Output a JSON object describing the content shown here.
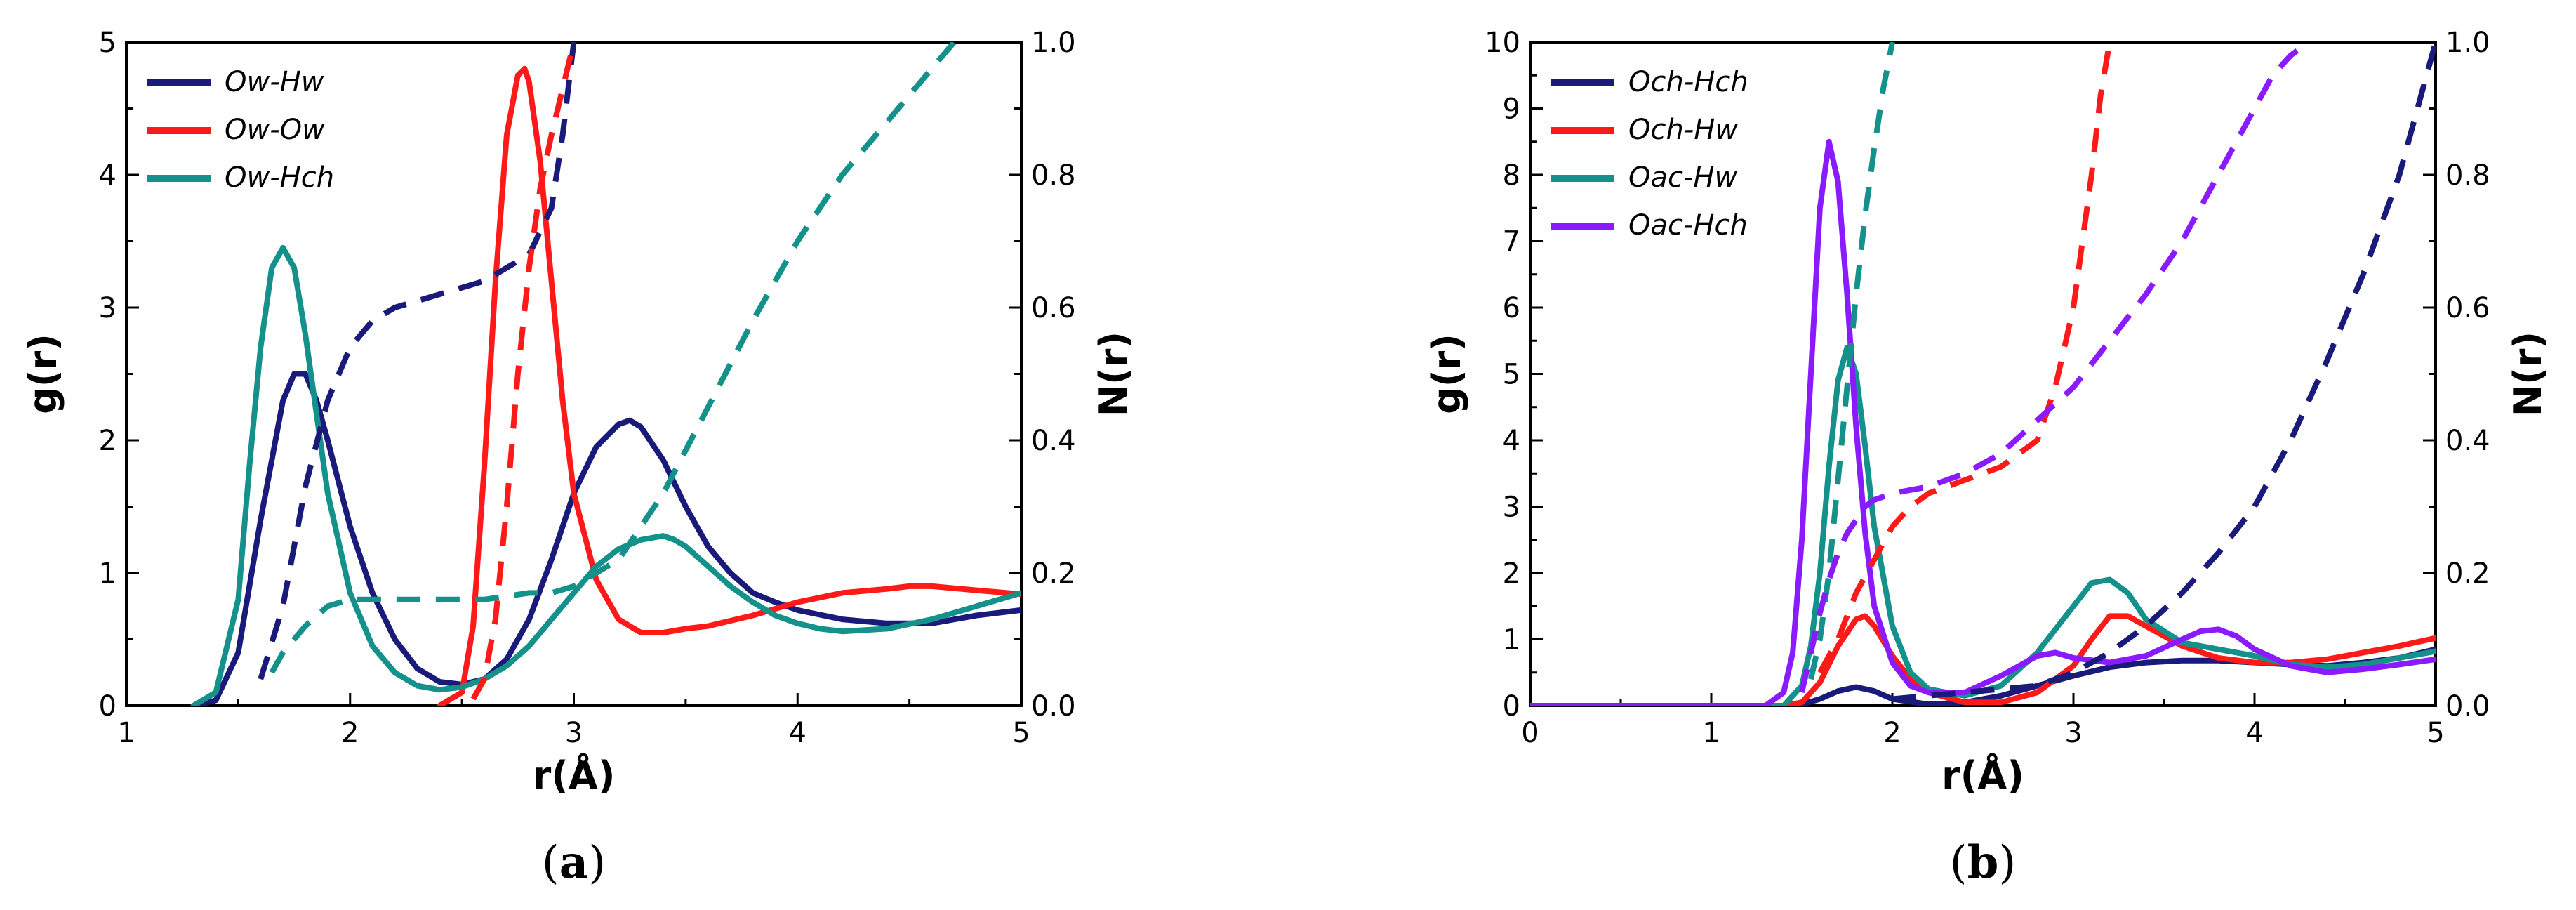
{
  "chart_data": [
    {
      "type": "line",
      "panel_label": "a",
      "xlabel": "r(Å)",
      "ylabel": "g(r)",
      "y2label": "N(r)",
      "xlim": [
        1,
        5
      ],
      "ylim": [
        0,
        5
      ],
      "y2lim": [
        0,
        1
      ],
      "xticks": [
        "1",
        "2",
        "3",
        "4",
        "5"
      ],
      "yticks": [
        "0",
        "1",
        "2",
        "3",
        "4",
        "5"
      ],
      "y2ticks": [
        "0.0",
        "0.2",
        "0.4",
        "0.6",
        "0.8",
        "1.0"
      ],
      "legend_position": "top-left",
      "series": [
        {
          "name": "Ow-Hw",
          "color": "#1a1a7a",
          "kind": "g",
          "x": [
            1.3,
            1.4,
            1.5,
            1.6,
            1.7,
            1.75,
            1.8,
            1.85,
            1.9,
            2.0,
            2.1,
            2.2,
            2.3,
            2.4,
            2.5,
            2.6,
            2.7,
            2.8,
            2.9,
            3.0,
            3.1,
            3.2,
            3.25,
            3.3,
            3.4,
            3.5,
            3.6,
            3.7,
            3.8,
            3.9,
            4.0,
            4.2,
            4.4,
            4.6,
            4.8,
            5.0
          ],
          "y": [
            0,
            0.04,
            0.4,
            1.4,
            2.3,
            2.5,
            2.5,
            2.3,
            2.0,
            1.35,
            0.85,
            0.5,
            0.28,
            0.18,
            0.16,
            0.2,
            0.35,
            0.65,
            1.1,
            1.6,
            1.95,
            2.12,
            2.15,
            2.1,
            1.85,
            1.5,
            1.2,
            1.0,
            0.85,
            0.78,
            0.72,
            0.65,
            0.62,
            0.62,
            0.68,
            0.72
          ]
        },
        {
          "name": "Ow-Ow",
          "color": "#ff1a1a",
          "kind": "g",
          "x": [
            2.4,
            2.5,
            2.55,
            2.6,
            2.65,
            2.7,
            2.75,
            2.78,
            2.8,
            2.85,
            2.9,
            2.95,
            3.0,
            3.1,
            3.2,
            3.3,
            3.4,
            3.5,
            3.6,
            3.8,
            4.0,
            4.2,
            4.4,
            4.5,
            4.6,
            4.8,
            5.0
          ],
          "y": [
            0,
            0.1,
            0.6,
            1.8,
            3.2,
            4.3,
            4.75,
            4.8,
            4.7,
            4.1,
            3.2,
            2.3,
            1.6,
            0.95,
            0.65,
            0.55,
            0.55,
            0.58,
            0.6,
            0.68,
            0.78,
            0.85,
            0.88,
            0.9,
            0.9,
            0.87,
            0.84
          ]
        },
        {
          "name": "Ow-Hch",
          "color": "#14918a",
          "kind": "g",
          "x": [
            1.3,
            1.4,
            1.5,
            1.55,
            1.6,
            1.65,
            1.7,
            1.75,
            1.8,
            1.85,
            1.9,
            2.0,
            2.1,
            2.2,
            2.3,
            2.4,
            2.5,
            2.6,
            2.7,
            2.8,
            2.9,
            3.0,
            3.1,
            3.2,
            3.3,
            3.4,
            3.45,
            3.5,
            3.6,
            3.7,
            3.8,
            3.9,
            4.0,
            4.1,
            4.2,
            4.4,
            4.6,
            4.8,
            5.0
          ],
          "y": [
            0,
            0.1,
            0.8,
            1.8,
            2.7,
            3.3,
            3.45,
            3.3,
            2.8,
            2.2,
            1.6,
            0.85,
            0.45,
            0.25,
            0.15,
            0.12,
            0.14,
            0.2,
            0.3,
            0.45,
            0.65,
            0.85,
            1.05,
            1.18,
            1.25,
            1.28,
            1.25,
            1.2,
            1.05,
            0.9,
            0.78,
            0.68,
            0.62,
            0.58,
            0.56,
            0.58,
            0.65,
            0.75,
            0.85
          ]
        },
        {
          "name": "Ow-Hw N(r)",
          "color": "#1a1a7a",
          "kind": "N",
          "legend": false,
          "x": [
            1.6,
            1.7,
            1.8,
            1.9,
            2.0,
            2.1,
            2.2,
            2.4,
            2.6,
            2.8,
            2.9,
            2.95,
            3.0
          ],
          "y": [
            0.04,
            0.15,
            0.33,
            0.46,
            0.54,
            0.58,
            0.6,
            0.62,
            0.64,
            0.68,
            0.75,
            0.86,
            1.0
          ]
        },
        {
          "name": "Ow-Ow N(r)",
          "color": "#ff1a1a",
          "kind": "N",
          "legend": false,
          "x": [
            2.55,
            2.6,
            2.65,
            2.7,
            2.75,
            2.8,
            2.85,
            2.9,
            2.95,
            3.0
          ],
          "y": [
            0.01,
            0.04,
            0.13,
            0.3,
            0.5,
            0.66,
            0.78,
            0.86,
            0.93,
            1.0
          ]
        },
        {
          "name": "Ow-Hch N(r)",
          "color": "#14918a",
          "kind": "N",
          "legend": false,
          "x": [
            1.65,
            1.7,
            1.8,
            1.9,
            2.0,
            2.1,
            2.2,
            2.4,
            2.6,
            2.8,
            2.9,
            3.0,
            3.2,
            3.4,
            3.6,
            3.8,
            4.0,
            4.2,
            4.4,
            4.6,
            4.7
          ],
          "y": [
            0.05,
            0.08,
            0.12,
            0.15,
            0.16,
            0.16,
            0.16,
            0.16,
            0.16,
            0.17,
            0.17,
            0.18,
            0.22,
            0.32,
            0.45,
            0.58,
            0.7,
            0.8,
            0.88,
            0.96,
            1.0
          ]
        }
      ]
    },
    {
      "type": "line",
      "panel_label": "b",
      "xlabel": "r(Å)",
      "ylabel": "g(r)",
      "y2label": "N(r)",
      "xlim": [
        0,
        5
      ],
      "ylim": [
        0,
        10
      ],
      "y2lim": [
        0,
        1
      ],
      "xticks": [
        "0",
        "1",
        "2",
        "3",
        "4",
        "5"
      ],
      "yticks": [
        "0",
        "1",
        "2",
        "3",
        "4",
        "5",
        "6",
        "7",
        "8",
        "9",
        "10"
      ],
      "y2ticks": [
        "0.0",
        "0.2",
        "0.4",
        "0.6",
        "0.8",
        "1.0"
      ],
      "legend_position": "top-left",
      "series": [
        {
          "name": "Och-Hch",
          "color": "#1a1a7a",
          "kind": "g",
          "x": [
            0,
            1.4,
            1.5,
            1.6,
            1.7,
            1.8,
            1.9,
            2.0,
            2.2,
            2.4,
            2.6,
            2.8,
            3.0,
            3.2,
            3.4,
            3.6,
            3.8,
            4.0,
            4.2,
            4.4,
            4.6,
            4.8,
            5.0
          ],
          "y": [
            0,
            0,
            0.02,
            0.1,
            0.22,
            0.28,
            0.22,
            0.1,
            0.02,
            0.05,
            0.15,
            0.3,
            0.45,
            0.58,
            0.65,
            0.68,
            0.68,
            0.65,
            0.62,
            0.6,
            0.65,
            0.72,
            0.85
          ]
        },
        {
          "name": "Och-Hw",
          "color": "#ff1a1a",
          "kind": "g",
          "x": [
            0,
            1.4,
            1.5,
            1.6,
            1.7,
            1.8,
            1.85,
            1.9,
            2.0,
            2.1,
            2.2,
            2.4,
            2.6,
            2.8,
            3.0,
            3.1,
            3.2,
            3.3,
            3.4,
            3.6,
            3.8,
            4.0,
            4.2,
            4.4,
            4.6,
            4.8,
            5.0
          ],
          "y": [
            0,
            0,
            0.05,
            0.35,
            0.9,
            1.3,
            1.35,
            1.2,
            0.75,
            0.4,
            0.2,
            0.05,
            0.05,
            0.2,
            0.6,
            1.0,
            1.35,
            1.35,
            1.2,
            0.9,
            0.72,
            0.65,
            0.65,
            0.7,
            0.8,
            0.9,
            1.02
          ]
        },
        {
          "name": "Oac-Hw",
          "color": "#14918a",
          "kind": "g",
          "x": [
            0,
            1.4,
            1.5,
            1.55,
            1.6,
            1.65,
            1.7,
            1.75,
            1.8,
            1.85,
            1.9,
            2.0,
            2.1,
            2.2,
            2.4,
            2.6,
            2.8,
            3.0,
            3.1,
            3.2,
            3.3,
            3.4,
            3.6,
            3.8,
            4.0,
            4.2,
            4.4,
            4.6,
            4.8,
            5.0
          ],
          "y": [
            0,
            0,
            0.3,
            0.9,
            2.0,
            3.6,
            4.9,
            5.4,
            5.0,
            3.9,
            2.7,
            1.2,
            0.5,
            0.25,
            0.15,
            0.3,
            0.8,
            1.5,
            1.85,
            1.9,
            1.7,
            1.3,
            0.95,
            0.85,
            0.75,
            0.62,
            0.58,
            0.62,
            0.72,
            0.82
          ]
        },
        {
          "name": "Oac-Hch",
          "color": "#8a1aff",
          "kind": "g",
          "x": [
            0,
            1.3,
            1.4,
            1.45,
            1.5,
            1.55,
            1.6,
            1.65,
            1.7,
            1.75,
            1.8,
            1.85,
            1.9,
            2.0,
            2.1,
            2.2,
            2.4,
            2.6,
            2.8,
            2.9,
            3.0,
            3.2,
            3.4,
            3.6,
            3.7,
            3.8,
            3.9,
            4.0,
            4.2,
            4.4,
            4.6,
            4.8,
            5.0
          ],
          "y": [
            0,
            0,
            0.2,
            0.8,
            2.5,
            5.0,
            7.5,
            8.5,
            7.9,
            6.2,
            4.2,
            2.6,
            1.5,
            0.65,
            0.3,
            0.2,
            0.2,
            0.45,
            0.75,
            0.8,
            0.72,
            0.65,
            0.75,
            1.0,
            1.12,
            1.15,
            1.05,
            0.85,
            0.6,
            0.5,
            0.55,
            0.62,
            0.7
          ]
        },
        {
          "name": "Och-Hch N(r)",
          "color": "#1a1a7a",
          "kind": "N",
          "legend": false,
          "x": [
            2.0,
            2.4,
            2.8,
            3.0,
            3.2,
            3.4,
            3.6,
            3.8,
            4.0,
            4.2,
            4.4,
            4.6,
            4.8,
            5.0
          ],
          "y": [
            0.01,
            0.02,
            0.03,
            0.05,
            0.08,
            0.12,
            0.17,
            0.23,
            0.3,
            0.4,
            0.52,
            0.65,
            0.8,
            1.0
          ]
        },
        {
          "name": "Och-Hw N(r)",
          "color": "#ff1a1a",
          "kind": "N",
          "legend": false,
          "x": [
            1.6,
            1.7,
            1.8,
            1.9,
            2.0,
            2.1,
            2.2,
            2.4,
            2.6,
            2.8,
            2.9,
            3.0,
            3.1,
            3.15,
            3.2
          ],
          "y": [
            0.05,
            0.1,
            0.17,
            0.22,
            0.27,
            0.3,
            0.32,
            0.34,
            0.36,
            0.4,
            0.48,
            0.6,
            0.8,
            0.92,
            1.0
          ]
        },
        {
          "name": "Oac-Hw N(r)",
          "color": "#14918a",
          "kind": "N",
          "legend": false,
          "x": [
            1.55,
            1.6,
            1.65,
            1.7,
            1.75,
            1.8,
            1.85,
            1.9,
            1.95,
            2.0
          ],
          "y": [
            0.04,
            0.1,
            0.2,
            0.34,
            0.48,
            0.62,
            0.74,
            0.84,
            0.93,
            1.0
          ]
        },
        {
          "name": "Oac-Hch N(r)",
          "color": "#8a1aff",
          "kind": "N",
          "legend": false,
          "x": [
            1.5,
            1.55,
            1.6,
            1.65,
            1.7,
            1.75,
            1.8,
            1.85,
            1.9,
            2.0,
            2.2,
            2.4,
            2.6,
            2.8,
            3.0,
            3.2,
            3.4,
            3.6,
            3.8,
            4.0,
            4.1,
            4.2,
            4.3
          ],
          "y": [
            0.02,
            0.08,
            0.14,
            0.19,
            0.23,
            0.26,
            0.28,
            0.3,
            0.31,
            0.32,
            0.33,
            0.35,
            0.38,
            0.43,
            0.48,
            0.55,
            0.62,
            0.7,
            0.8,
            0.9,
            0.95,
            0.98,
            1.0
          ]
        }
      ]
    }
  ]
}
